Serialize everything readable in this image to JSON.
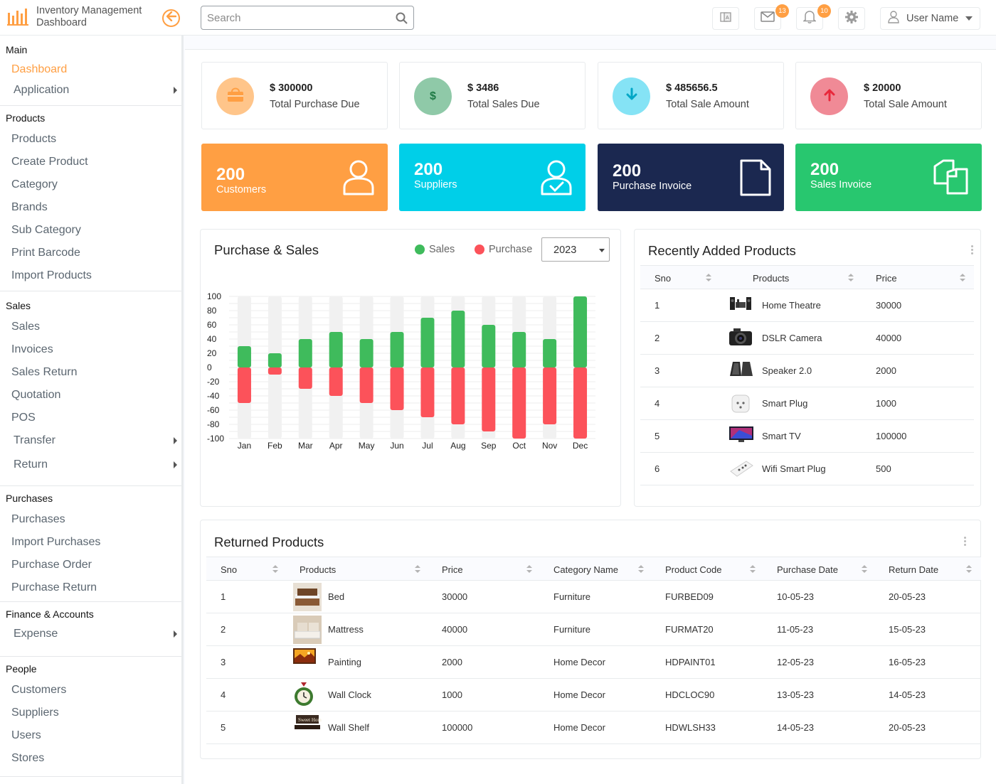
{
  "app": {
    "title_line1": "Inventory Management",
    "title_line2": "Dashboard"
  },
  "header": {
    "search_placeholder": "Search",
    "mail_badge": "13",
    "notif_badge": "10",
    "user_name": "User Name"
  },
  "sidebar": {
    "main": {
      "title": "Main",
      "items": [
        "Dashboard",
        "Application"
      ]
    },
    "products": {
      "title": "Products",
      "items": [
        "Products",
        "Create Product",
        "Category",
        "Brands",
        "Sub Category",
        "Print Barcode",
        "Import Products"
      ]
    },
    "sales": {
      "title": "Sales",
      "items": [
        "Sales",
        "Invoices",
        "Sales Return",
        "Quotation",
        "POS",
        "Transfer",
        "Return"
      ]
    },
    "purchases": {
      "title": "Purchases",
      "items": [
        "Purchases",
        "Import Purchases",
        "Purchase Order",
        "Purchase Return"
      ]
    },
    "finance": {
      "title": "Finance & Accounts",
      "items": [
        "Expense"
      ]
    },
    "people": {
      "title": "People",
      "items": [
        "Customers",
        "Suppliers",
        "Users",
        "Stores"
      ]
    }
  },
  "stats": [
    {
      "value": "$ 300000",
      "label": "Total Purchase Due",
      "color": "#ffc58a"
    },
    {
      "value": "$ 3486",
      "label": "Total Sales Due",
      "color": "#8fc9a8"
    },
    {
      "value": "$ 485656.5",
      "label": "Total Sale Amount",
      "color": "#85e3f5"
    },
    {
      "value": "$ 20000",
      "label": "Total Sale Amount",
      "color": "#f08a96"
    }
  ],
  "counts": [
    {
      "number": "200",
      "label": "Customers",
      "color": "#ff9f43"
    },
    {
      "number": "200",
      "label": "Suppliers",
      "color": "#00cfe8"
    },
    {
      "number": "200",
      "label": "Purchase Invoice",
      "color": "#1b2850"
    },
    {
      "number": "200",
      "label": "Sales Invoice",
      "color": "#28c76f"
    }
  ],
  "purchase_sales": {
    "title": "Purchase & Sales",
    "legend_sales": "Sales",
    "legend_purchase": "Purchase",
    "year": "2023",
    "sales_color": "#3fbb5c",
    "purchase_color": "#fc525a"
  },
  "chart_data": {
    "type": "bar",
    "stacked": true,
    "categories": [
      "Jan",
      "Feb",
      "Mar",
      "Apr",
      "May",
      "Jun",
      "Jul",
      "Aug",
      "Sep",
      "Oct",
      "Nov",
      "Dec"
    ],
    "series": [
      {
        "name": "Sales",
        "values": [
          30,
          20,
          40,
          50,
          40,
          50,
          70,
          80,
          60,
          50,
          40,
          100
        ]
      },
      {
        "name": "Purchase",
        "values": [
          -50,
          -10,
          -30,
          -40,
          -50,
          -60,
          -70,
          -80,
          -90,
          -100,
          -80,
          -100
        ]
      }
    ],
    "yticks": [
      "100",
      "80",
      "60",
      "40",
      "20",
      "0",
      "-20",
      "-40",
      "-60",
      "-80",
      "-100"
    ],
    "ylim": [
      -100,
      100
    ],
    "grid": true,
    "legend_position": "top-right"
  },
  "recent": {
    "title": "Recently Added Products",
    "headers": [
      "Sno",
      "Products",
      "Price"
    ],
    "rows": [
      {
        "sno": "1",
        "product": "Home Theatre",
        "price": "30000",
        "icon": "home-theatre"
      },
      {
        "sno": "2",
        "product": "DSLR Camera",
        "price": "40000",
        "icon": "camera"
      },
      {
        "sno": "3",
        "product": "Speaker 2.0",
        "price": "2000",
        "icon": "speaker"
      },
      {
        "sno": "4",
        "product": "Smart Plug",
        "price": "1000",
        "icon": "smart-plug"
      },
      {
        "sno": "5",
        "product": "Smart TV",
        "price": "100000",
        "icon": "smart-tv"
      },
      {
        "sno": "6",
        "product": "Wifi Smart Plug",
        "price": "500",
        "icon": "wifi-plug"
      }
    ]
  },
  "returned": {
    "title": "Returned Products",
    "headers": [
      "Sno",
      "Products",
      "Price",
      "Category Name",
      "Product Code",
      "Purchase Date",
      "Return Date"
    ],
    "rows": [
      {
        "sno": "1",
        "product": "Bed",
        "price": "30000",
        "category": "Furniture",
        "code": "FURBED09",
        "purchase_date": "10-05-23",
        "return_date": "20-05-23",
        "icon": "bed"
      },
      {
        "sno": "2",
        "product": "Mattress",
        "price": "40000",
        "category": "Furniture",
        "code": "FURMAT20",
        "purchase_date": "11-05-23",
        "return_date": "15-05-23",
        "icon": "mattress"
      },
      {
        "sno": "3",
        "product": "Painting",
        "price": "2000",
        "category": "Home Decor",
        "code": "HDPAINT01",
        "purchase_date": "12-05-23",
        "return_date": "16-05-23",
        "icon": "painting"
      },
      {
        "sno": "4",
        "product": "Wall Clock",
        "price": "1000",
        "category": "Home Decor",
        "code": "HDCLOC90",
        "purchase_date": "13-05-23",
        "return_date": "14-05-23",
        "icon": "wall-clock"
      },
      {
        "sno": "5",
        "product": "Wall Shelf",
        "price": "100000",
        "category": "Home Decor",
        "code": "HDWLSH33",
        "purchase_date": "14-05-23",
        "return_date": "20-05-23",
        "icon": "wall-shelf"
      }
    ]
  }
}
